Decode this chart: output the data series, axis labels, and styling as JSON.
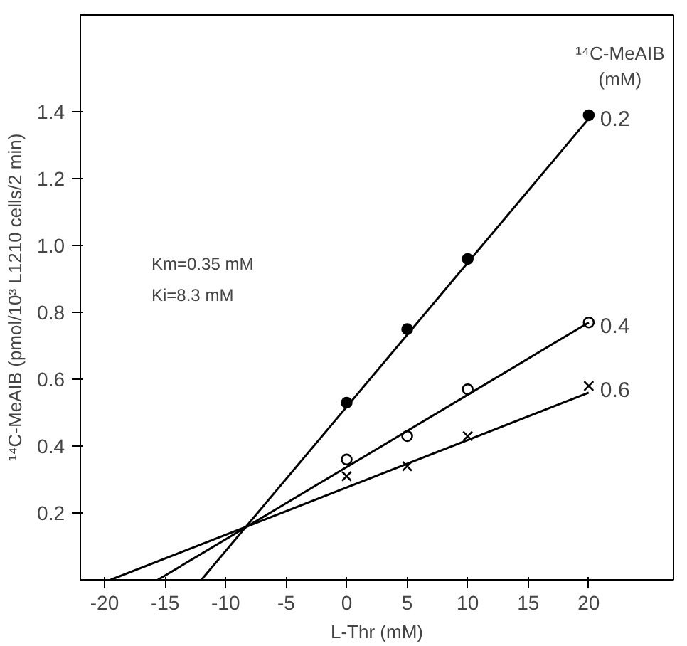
{
  "chart_data": {
    "type": "scatter",
    "xlabel": "L-Thr (mM)",
    "ylabel": "¹⁴C-MeAIB (pmol/10³ L1210 cells/2 min)",
    "legend_title": "¹⁴C-MeAIB\n(mM)",
    "annotations": [
      "Km=0.35 mM",
      "Ki=8.3 mM"
    ],
    "xlim": [
      -22,
      27
    ],
    "xticks": [
      -20,
      -15,
      -10,
      -5,
      0,
      5,
      10,
      15,
      20
    ],
    "ylim": [
      0,
      1.69
    ],
    "yticks": [
      0.2,
      0.4,
      0.6,
      0.8,
      {
        "value": 1,
        "label": "1.0"
      },
      1.2,
      1.4
    ],
    "grid": false,
    "series": [
      {
        "name": "0.2",
        "color": "#000000",
        "marker": "circle",
        "x": [
          0,
          5,
          10,
          20
        ],
        "values": [
          0.53,
          0.75,
          0.96,
          1.39
        ]
      },
      {
        "name": "0.4",
        "color": "#000000",
        "marker": "circle_open",
        "x": [
          0,
          5,
          10,
          20
        ],
        "values": [
          0.36,
          0.43,
          0.57,
          0.77
        ]
      },
      {
        "name": "0.6",
        "color": "#000000",
        "marker": "x",
        "x": [
          0,
          5,
          10,
          20
        ],
        "values": [
          0.31,
          0.34,
          0.43,
          0.58
        ]
      },
      {
        "type": "line",
        "color": "#000000",
        "x": [
          -12,
          20
        ],
        "values": [
          0,
          1.38
        ]
      },
      {
        "type": "line",
        "color": "#000000",
        "x": [
          -15.6,
          20
        ],
        "values": [
          0,
          0.77
        ]
      },
      {
        "type": "line",
        "color": "#000000",
        "x": [
          -19.5,
          20
        ],
        "values": [
          0,
          0.56
        ]
      }
    ]
  }
}
